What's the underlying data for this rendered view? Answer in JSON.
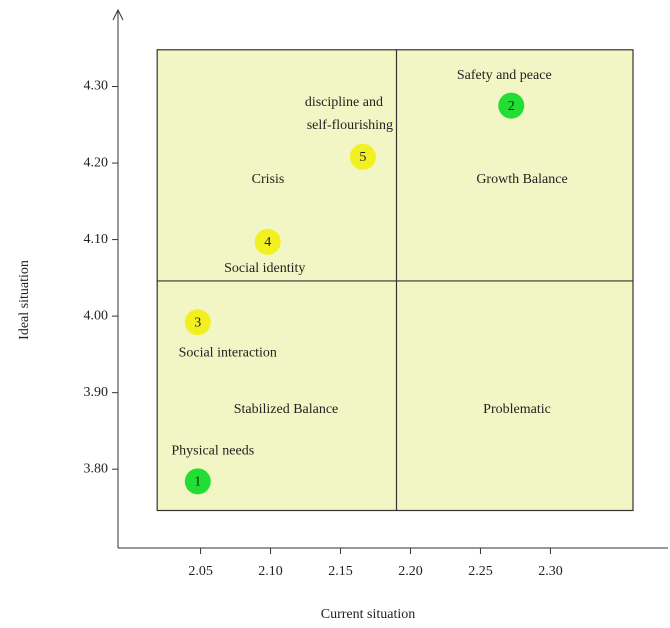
{
  "chart_data": {
    "type": "scatter",
    "x_label": "Current situation",
    "y_label": "Ideal situation",
    "x": [
      2.048,
      2.272,
      2.048,
      2.098,
      2.166
    ],
    "values": [
      3.784,
      4.275,
      3.992,
      4.097,
      4.208
    ],
    "point_labels": [
      "1",
      "2",
      "3",
      "4",
      "5"
    ],
    "point_names": [
      [
        "Physical needs"
      ],
      [
        "Safety and peace"
      ],
      [
        "Social interaction"
      ],
      [
        "Social identity"
      ],
      [
        "discipline and",
        "self-flourishing"
      ]
    ],
    "colors": [
      "#22dd33",
      "#22dd33",
      "#f2f020",
      "#f2f020",
      "#f2f020"
    ],
    "xlim": [
      1.991,
      2.384
    ],
    "ylim": [
      3.697,
      4.4
    ],
    "xticks": [
      {
        "value": 2.05,
        "label": "2.05"
      },
      {
        "value": 2.1,
        "label": "2.10"
      },
      {
        "value": 2.15,
        "label": "2.15"
      },
      {
        "value": 2.2,
        "label": "2.20"
      },
      {
        "value": 2.25,
        "label": "2.25"
      },
      {
        "value": 2.3,
        "label": "2.30"
      }
    ],
    "yticks": [
      {
        "value": 3.8,
        "label": "3.80"
      },
      {
        "value": 3.9,
        "label": "3.90"
      },
      {
        "value": 4.0,
        "label": "4.00"
      },
      {
        "value": 4.1,
        "label": "4.10"
      },
      {
        "value": 4.2,
        "label": "4.20"
      },
      {
        "value": 4.3,
        "label": "4.30"
      }
    ],
    "box_x": [
      2.019,
      2.359
    ],
    "box_y": [
      3.746,
      4.348
    ],
    "quadrant_x": 2.19,
    "quadrant_y": 4.046,
    "quadrant_labels": [
      "Crisis",
      "Growth Balance",
      "Stabilized Balance",
      "Problematic"
    ],
    "box_color": "#f2f5c4"
  }
}
